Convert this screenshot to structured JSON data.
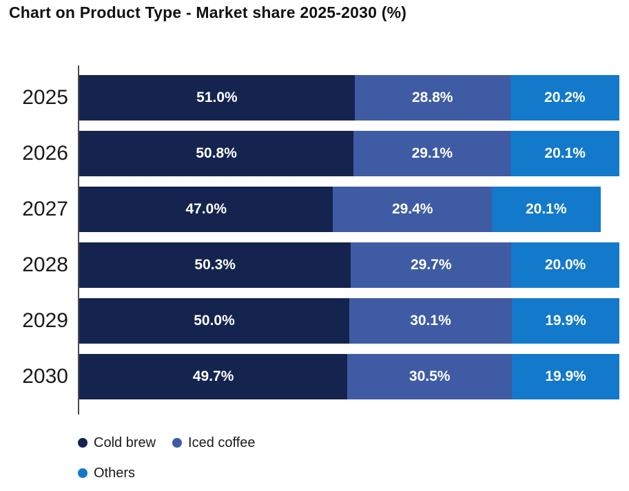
{
  "title": "Chart on Product Type - Market share 2025-2030 (%)",
  "colors": {
    "cold_brew": "#14244e",
    "iced_coffee": "#3e5ba4",
    "others": "#1279cb",
    "axis": "#4b4b4b",
    "title_text": "#111111",
    "background": "#ffffff",
    "value_label_text": "#ffffff"
  },
  "chart_data": {
    "type": "bar",
    "orientation": "horizontal-stacked",
    "title": "Chart on Product Type - Market share 2025-2030 (%)",
    "categories": [
      "2025",
      "2026",
      "2027",
      "2028",
      "2029",
      "2030"
    ],
    "series": [
      {
        "name": "Cold brew",
        "color": "#14244e",
        "values": [
          51.0,
          50.8,
          47.0,
          50.3,
          50.0,
          49.7
        ]
      },
      {
        "name": "Iced coffee",
        "color": "#3e5ba4",
        "values": [
          28.8,
          29.1,
          29.4,
          29.7,
          30.1,
          30.5
        ]
      },
      {
        "name": "Others",
        "color": "#1279cb",
        "values": [
          20.2,
          20.1,
          20.1,
          20.0,
          19.9,
          19.9
        ]
      }
    ],
    "value_suffix": "%",
    "value_decimals": 1,
    "xlabel": "",
    "ylabel": "",
    "xlim": [
      0,
      100
    ],
    "grid": false,
    "legend_position": "bottom-left"
  }
}
